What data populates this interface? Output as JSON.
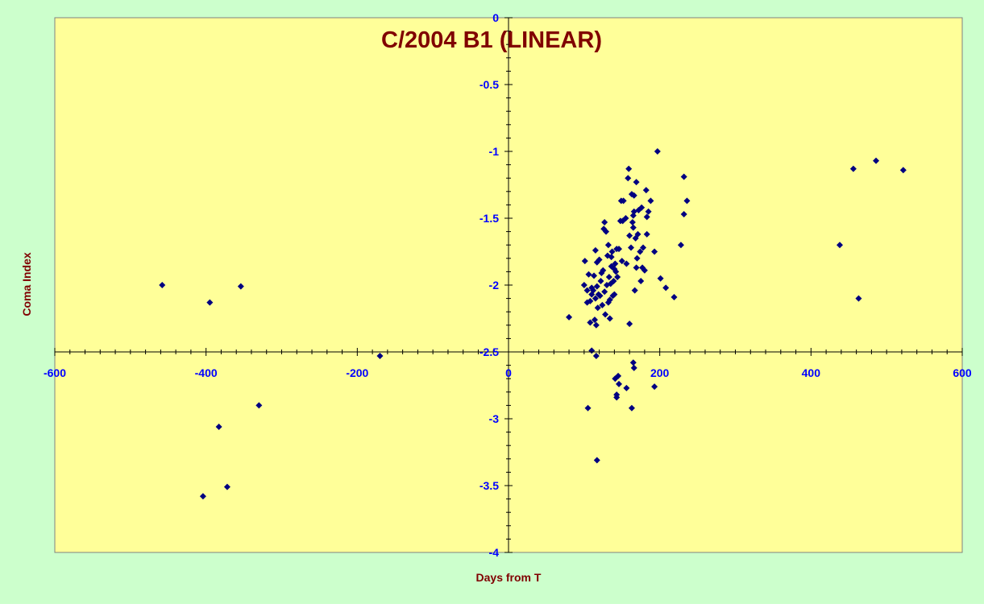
{
  "colors": {
    "outer_background": "#ccffcc",
    "plot_background": "#ffff99",
    "title_color": "#800000",
    "axis_title_color": "#800000",
    "tick_label_color": "#0000ff",
    "marker_color": "#000080",
    "axis_line_color": "#000000"
  },
  "chart_data": {
    "type": "scatter",
    "title": "C/2004 B1 (LINEAR)",
    "xlabel": "Days from T",
    "ylabel": "Coma Index",
    "xlim": [
      -600,
      600
    ],
    "ylim": [
      -4,
      0
    ],
    "x_ticks": [
      -600,
      -400,
      -200,
      0,
      200,
      400,
      600
    ],
    "y_ticks": [
      0,
      -0.5,
      -1,
      -1.5,
      -2,
      -2.5,
      -3,
      -3.5,
      -4
    ],
    "x_tick_labels": [
      "-600",
      "-400",
      "-200",
      "0",
      "200",
      "400",
      "600"
    ],
    "y_tick_labels": [
      "0",
      "-0.5",
      "-1",
      "-1.5",
      "-2",
      "-2.5",
      "-3",
      "-3.5",
      "-4"
    ],
    "x_axis_crosses_y_at": -2.5,
    "y_axis_crosses_x_at": 0,
    "grid": false,
    "legend": "none",
    "marker": "diamond",
    "points": [
      [
        -458,
        -2.0
      ],
      [
        -395,
        -2.13
      ],
      [
        -354,
        -2.01
      ],
      [
        -170,
        -2.53
      ],
      [
        -404,
        -3.58
      ],
      [
        -383,
        -3.06
      ],
      [
        -372,
        -3.51
      ],
      [
        -330,
        -2.9
      ],
      [
        80,
        -2.24
      ],
      [
        100,
        -2.0
      ],
      [
        101,
        -1.82
      ],
      [
        104,
        -2.04
      ],
      [
        104,
        -2.13
      ],
      [
        106,
        -1.92
      ],
      [
        108,
        -2.12
      ],
      [
        108,
        -2.28
      ],
      [
        110,
        -2.02
      ],
      [
        110,
        -2.07
      ],
      [
        112,
        -2.04
      ],
      [
        113,
        -1.93
      ],
      [
        114,
        -2.26
      ],
      [
        115,
        -1.74
      ],
      [
        115,
        -2.1
      ],
      [
        116,
        -2.3
      ],
      [
        117,
        -1.83
      ],
      [
        117,
        -2.01
      ],
      [
        118,
        -2.17
      ],
      [
        119,
        -2.07
      ],
      [
        120,
        -1.81
      ],
      [
        121,
        -2.08
      ],
      [
        122,
        -1.97
      ],
      [
        123,
        -1.91
      ],
      [
        124,
        -2.15
      ],
      [
        125,
        -1.89
      ],
      [
        126,
        -1.58
      ],
      [
        127,
        -1.53
      ],
      [
        127,
        -2.05
      ],
      [
        128,
        -2.22
      ],
      [
        129,
        -1.6
      ],
      [
        130,
        -2.0
      ],
      [
        131,
        -1.78
      ],
      [
        132,
        -1.7
      ],
      [
        132,
        -2.13
      ],
      [
        133,
        -1.94
      ],
      [
        134,
        -2.11
      ],
      [
        134,
        -2.25
      ],
      [
        135,
        -1.99
      ],
      [
        136,
        -1.86
      ],
      [
        136,
        -1.79
      ],
      [
        137,
        -1.75
      ],
      [
        138,
        -2.08
      ],
      [
        139,
        -1.97
      ],
      [
        140,
        -2.07
      ],
      [
        140,
        -1.88
      ],
      [
        141,
        -1.84
      ],
      [
        142,
        -1.9
      ],
      [
        143,
        -1.73
      ],
      [
        144,
        -1.94
      ],
      [
        146,
        -1.73
      ],
      [
        148,
        -1.52
      ],
      [
        149,
        -1.37
      ],
      [
        150,
        -1.82
      ],
      [
        151,
        -1.52
      ],
      [
        152,
        -1.37
      ],
      [
        155,
        -1.5
      ],
      [
        156,
        -1.84
      ],
      [
        158,
        -1.2
      ],
      [
        159,
        -1.13
      ],
      [
        160,
        -1.63
      ],
      [
        160,
        -2.29
      ],
      [
        162,
        -1.72
      ],
      [
        163,
        -1.32
      ],
      [
        164,
        -1.53
      ],
      [
        165,
        -1.48
      ],
      [
        165,
        -1.57
      ],
      [
        166,
        -1.45
      ],
      [
        166,
        -1.33
      ],
      [
        167,
        -2.04
      ],
      [
        168,
        -1.65
      ],
      [
        169,
        -1.23
      ],
      [
        169,
        -1.87
      ],
      [
        170,
        -1.8
      ],
      [
        171,
        -1.62
      ],
      [
        172,
        -1.44
      ],
      [
        174,
        -1.75
      ],
      [
        175,
        -1.97
      ],
      [
        176,
        -1.42
      ],
      [
        177,
        -1.87
      ],
      [
        178,
        -1.72
      ],
      [
        180,
        -1.89
      ],
      [
        182,
        -1.29
      ],
      [
        183,
        -1.49
      ],
      [
        183,
        -1.62
      ],
      [
        185,
        -1.45
      ],
      [
        188,
        -1.37
      ],
      [
        193,
        -1.75
      ],
      [
        197,
        -1.0
      ],
      [
        201,
        -1.95
      ],
      [
        208,
        -2.02
      ],
      [
        219,
        -2.09
      ],
      [
        228,
        -1.7
      ],
      [
        232,
        -1.19
      ],
      [
        232,
        -1.47
      ],
      [
        236,
        -1.37
      ],
      [
        105,
        -2.92
      ],
      [
        110,
        -2.49
      ],
      [
        116,
        -2.53
      ],
      [
        117,
        -3.31
      ],
      [
        141,
        -2.7
      ],
      [
        143,
        -2.82
      ],
      [
        143,
        -2.84
      ],
      [
        145,
        -2.68
      ],
      [
        146,
        -2.74
      ],
      [
        156,
        -2.77
      ],
      [
        163,
        -2.92
      ],
      [
        165,
        -2.58
      ],
      [
        166,
        -2.62
      ],
      [
        193,
        -2.76
      ],
      [
        438,
        -1.7
      ],
      [
        456,
        -1.13
      ],
      [
        463,
        -2.1
      ],
      [
        486,
        -1.07
      ],
      [
        522,
        -1.14
      ]
    ]
  }
}
